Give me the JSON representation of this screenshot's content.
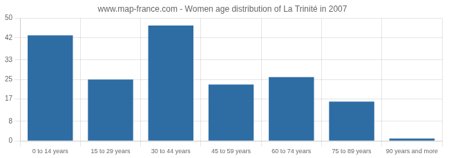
{
  "chart_data": {
    "type": "bar",
    "title": "www.map-france.com - Women age distribution of La Trinité in 2007",
    "categories": [
      "0 to 14 years",
      "15 to 29 years",
      "30 to 44 years",
      "45 to 59 years",
      "60 to 74 years",
      "75 to 89 years",
      "90 years and more"
    ],
    "values": [
      43,
      25,
      47,
      23,
      26,
      16,
      1
    ],
    "color": "#2e6da4",
    "ylim": [
      0,
      50
    ],
    "yticks": [
      0,
      8,
      17,
      25,
      33,
      42,
      50
    ],
    "grid": true
  }
}
